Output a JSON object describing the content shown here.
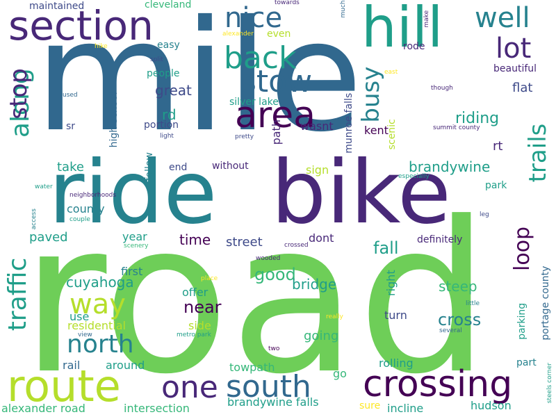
{
  "background": "#ffffff",
  "palette": {
    "purple": "#440154",
    "indigo": "#482878",
    "blue": "#3e4a89",
    "steel": "#31688e",
    "teal": "#26828e",
    "sea": "#1f9e89",
    "green": "#35b779",
    "lime": "#6ece58",
    "yellowgreen": "#b5de2b",
    "yellow": "#fde725"
  },
  "words": [
    "mile",
    "road",
    "ride",
    "bike",
    "section",
    "hill",
    "route",
    "crossing",
    "one",
    "south",
    "area",
    "back",
    "stow",
    "nice",
    "well",
    "lot",
    "along",
    "traffic",
    "stop",
    "trails",
    "busy",
    "way",
    "north",
    "loop",
    "riding",
    "brandywine",
    "maintained",
    "cleveland",
    "towards",
    "much",
    "make",
    "alexander",
    "even",
    "rode",
    "easy",
    "hike",
    "split",
    "people",
    "beautiful",
    "great",
    "flat",
    "east",
    "though",
    "used",
    "rd",
    "silver lake",
    "munroe falls",
    "kent",
    "summit county",
    "sr",
    "high school",
    "portion",
    "light",
    "pretty",
    "path",
    "wasnt",
    "scenic",
    "rt",
    "follow",
    "take",
    "end",
    "without",
    "sign",
    "park",
    "water",
    "neighborhoods",
    "especially",
    "access",
    "couple",
    "county",
    "leg",
    "paved",
    "year",
    "time",
    "street",
    "dont",
    "definitely",
    "portage county",
    "scenery",
    "crossed",
    "wooded",
    "fall",
    "first",
    "good",
    "right",
    "cuyahoga",
    "place",
    "bridge",
    "steep",
    "offer",
    "near",
    "little",
    "use",
    "cross",
    "parking",
    "really",
    "turn",
    "residential",
    "side",
    "going",
    "view",
    "metro park",
    "several",
    "two",
    "rail",
    "around",
    "rolling",
    "part",
    "towpath",
    "go",
    "steels corner",
    "alexander road",
    "intersection",
    "brandywine falls",
    "sure",
    "incline",
    "hudson"
  ]
}
